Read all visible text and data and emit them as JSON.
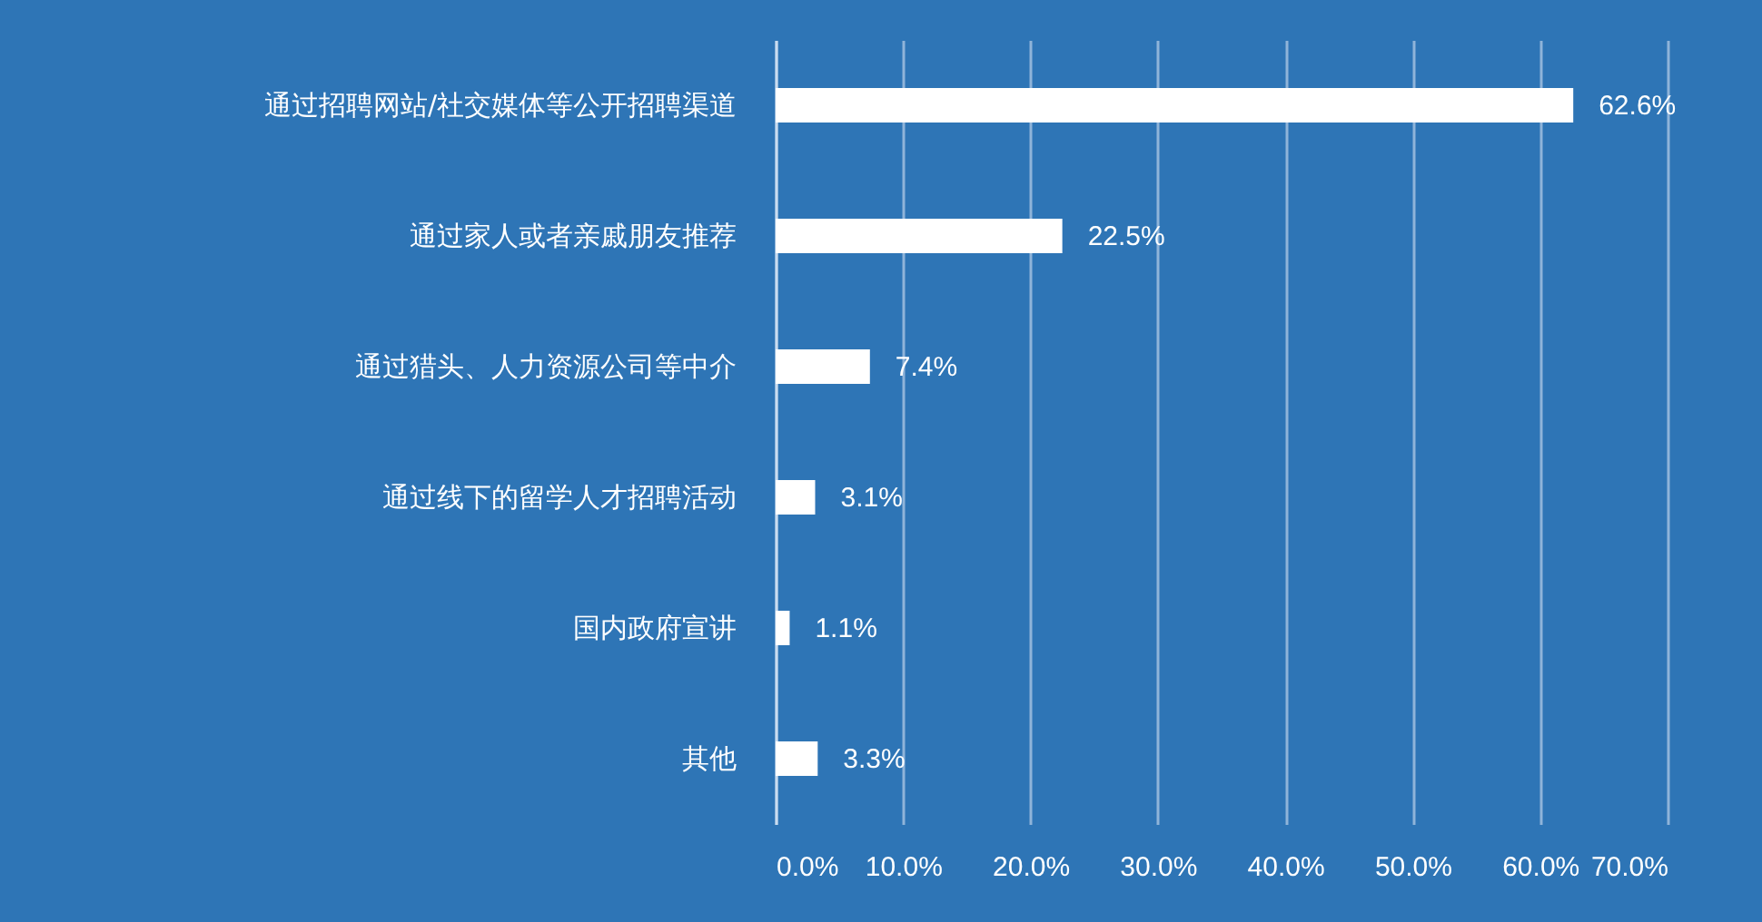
{
  "chart_data": {
    "type": "bar",
    "orientation": "horizontal",
    "categories": [
      "通过招聘网站/社交媒体等公开招聘渠道",
      "通过家人或者亲戚朋友推荐",
      "通过猎头、人力资源公司等中介",
      "通过线下的留学人才招聘活动",
      "国内政府宣讲",
      "其他"
    ],
    "values": [
      62.6,
      22.5,
      7.4,
      3.1,
      1.1,
      3.3
    ],
    "value_labels": [
      "62.6%",
      "22.5%",
      "7.4%",
      "3.1%",
      "1.1%",
      "3.3%"
    ],
    "color": "#ffffff",
    "xlim": [
      0,
      70
    ],
    "xticks": [
      {
        "value": 0,
        "label": "0.0%"
      },
      {
        "value": 10,
        "label": "10.0%"
      },
      {
        "value": 20,
        "label": "20.0%"
      },
      {
        "value": 30,
        "label": "30.0%"
      },
      {
        "value": 40,
        "label": "40.0%"
      },
      {
        "value": 50,
        "label": "50.0%"
      },
      {
        "value": 60,
        "label": "60.0%"
      },
      {
        "value": 70,
        "label": "70.0%"
      }
    ],
    "grid": "x"
  }
}
